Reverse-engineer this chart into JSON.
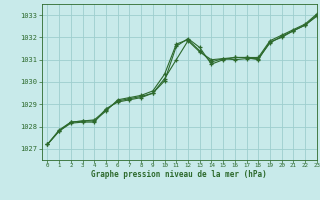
{
  "background_color": "#c8eaea",
  "grid_color": "#9ecece",
  "line_color": "#2d6a2d",
  "title": "Graphe pression niveau de la mer (hPa)",
  "xlim": [
    -0.5,
    23
  ],
  "ylim": [
    1026.5,
    1033.5
  ],
  "yticks": [
    1027,
    1028,
    1029,
    1030,
    1031,
    1032,
    1033
  ],
  "xticks": [
    0,
    1,
    2,
    3,
    4,
    5,
    6,
    7,
    8,
    9,
    10,
    11,
    12,
    13,
    14,
    15,
    16,
    17,
    18,
    19,
    20,
    21,
    22,
    23
  ],
  "series": [
    [
      1027.2,
      1027.8,
      1028.15,
      1028.2,
      1028.2,
      1028.8,
      1029.1,
      1029.2,
      1029.3,
      1029.5,
      1030.05,
      1031.6,
      1031.95,
      1031.55,
      1030.8,
      1031.0,
      1031.1,
      1031.1,
      1031.0,
      1031.8,
      1032.0,
      1032.3,
      1032.55,
      1033.0
    ],
    [
      1027.2,
      1027.8,
      1028.2,
      1028.25,
      1028.25,
      1028.7,
      1029.2,
      1029.3,
      1029.4,
      1029.6,
      1030.35,
      1031.7,
      1031.9,
      1031.4,
      1030.9,
      1031.05,
      1031.1,
      1031.1,
      1031.1,
      1031.85,
      1032.1,
      1032.35,
      1032.6,
      1033.05
    ],
    [
      1027.2,
      1027.85,
      1028.2,
      1028.25,
      1028.3,
      1028.75,
      1029.15,
      1029.25,
      1029.35,
      1029.5,
      1030.15,
      1031.0,
      1031.85,
      1031.35,
      1031.0,
      1031.05,
      1031.0,
      1031.05,
      1031.05,
      1031.75,
      1032.05,
      1032.3,
      1032.55,
      1032.95
    ]
  ]
}
